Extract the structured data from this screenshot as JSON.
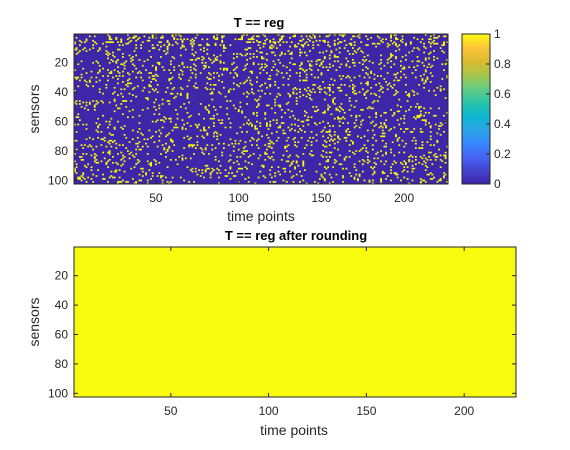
{
  "chart_data": [
    {
      "type": "heatmap",
      "title": "T == reg",
      "xlabel": "time points",
      "ylabel": "sensors",
      "x_range": [
        1,
        226
      ],
      "y_range": [
        1,
        102
      ],
      "x_ticks": [
        50,
        100,
        150,
        200
      ],
      "y_ticks": [
        20,
        40,
        60,
        80,
        100
      ],
      "values_description": "binary 0/1 matrix, mostly 0 with scattered 1s",
      "fraction_ones_approx": 0.1,
      "low_color": "#3e26a8",
      "high_color": "#f9fb0e",
      "colorbar": {
        "ticks": [
          "0",
          "0.2",
          "0.4",
          "0.6",
          "0.8",
          "1"
        ],
        "range": [
          0,
          1
        ],
        "colors": [
          "#3e26a8",
          "#4443d0",
          "#4765f5",
          "#3388fe",
          "#2aa4e4",
          "#0db8cf",
          "#2bc4a8",
          "#65cc80",
          "#a7c64c",
          "#dbba30",
          "#fdc53a",
          "#f9fb0e"
        ]
      }
    },
    {
      "type": "heatmap",
      "title": "T == reg after rounding",
      "xlabel": "time points",
      "ylabel": "sensors",
      "x_range": [
        1,
        226
      ],
      "y_range": [
        1,
        102
      ],
      "x_ticks": [
        50,
        100,
        150,
        200
      ],
      "y_ticks": [
        20,
        40,
        60,
        80,
        100
      ],
      "uniform_value": 1,
      "fill_color": "#f9fb0e"
    }
  ]
}
